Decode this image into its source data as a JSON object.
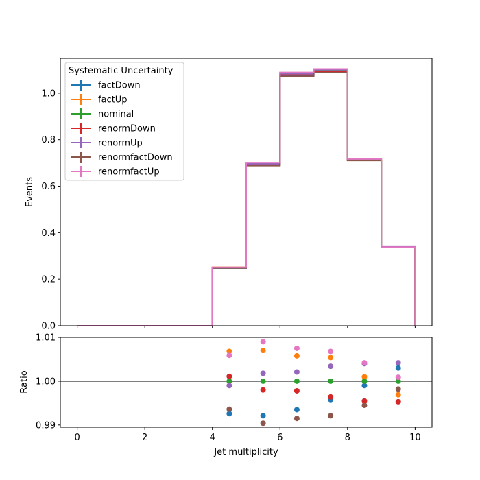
{
  "chart_data": [
    {
      "type": "line",
      "panel": "main",
      "title": "",
      "xlabel": "",
      "ylabel": "Events",
      "xlim": [
        -0.5,
        10.5
      ],
      "ylim": [
        0,
        1.15
      ],
      "xticks": [
        0,
        2,
        4,
        6,
        8,
        10
      ],
      "yticks": [
        0.0,
        0.2,
        0.4,
        0.6,
        0.8,
        1.0
      ],
      "ytick_labels": [
        "0.0",
        "0.2",
        "0.4",
        "0.6",
        "0.8",
        "1.0"
      ],
      "grid": false,
      "legend": {
        "title": "Systematic Uncertainty",
        "placement": "top-left"
      },
      "bin_edges": [
        0,
        1,
        2,
        3,
        4,
        5,
        6,
        7,
        8,
        9,
        10
      ],
      "series": [
        {
          "name": "factDown",
          "color": "#1f77b4",
          "values": [
            0,
            0,
            0,
            0,
            0.248,
            0.692,
            1.075,
            1.092,
            0.713,
            0.339
          ]
        },
        {
          "name": "factUp",
          "color": "#ff7f0e",
          "values": [
            0,
            0,
            0,
            0,
            0.2517,
            0.6999,
            1.0873,
            1.1029,
            0.7147,
            0.337
          ]
        },
        {
          "name": "nominal",
          "color": "#2ca02c",
          "values": [
            0,
            0,
            0,
            0,
            0.25,
            0.695,
            1.081,
            1.097,
            0.714,
            0.338
          ]
        },
        {
          "name": "renormDown",
          "color": "#d62728",
          "values": [
            0,
            0,
            0,
            0,
            0.2503,
            0.6936,
            1.0786,
            1.0931,
            0.7108,
            0.3364
          ]
        },
        {
          "name": "renormUp",
          "color": "#9467bd",
          "values": [
            0,
            0,
            0,
            0,
            0.2498,
            0.6963,
            1.0832,
            1.1007,
            0.7168,
            0.3394
          ]
        },
        {
          "name": "renormfactDown",
          "color": "#8c564b",
          "values": [
            0,
            0,
            0,
            0,
            0.2484,
            0.6883,
            1.0718,
            1.0883,
            0.7101,
            0.3374
          ]
        },
        {
          "name": "renormfactUp",
          "color": "#e377c2",
          "values": [
            0,
            0,
            0,
            0,
            0.2515,
            0.7013,
            1.0891,
            1.1044,
            0.717,
            0.3383
          ]
        }
      ]
    },
    {
      "type": "scatter",
      "panel": "ratio",
      "title": "",
      "xlabel": "Jet multiplicity",
      "ylabel": "Ratio",
      "xlim": [
        -0.5,
        10.5
      ],
      "ylim": [
        0.9895,
        1.01
      ],
      "xticks": [
        0,
        2,
        4,
        6,
        8,
        10
      ],
      "xtick_labels": [
        "0",
        "2",
        "4",
        "6",
        "8",
        "10"
      ],
      "yticks": [
        0.99,
        1.0,
        1.01
      ],
      "ytick_labels": [
        "0.99",
        "1.00",
        "1.01"
      ],
      "reference_line": 1.0,
      "x": [
        4.5,
        5.5,
        6.5,
        7.5,
        8.5,
        9.5
      ],
      "series": [
        {
          "name": "factDown",
          "color": "#1f77b4",
          "values": [
            0.9926,
            0.9921,
            0.9935,
            0.9958,
            0.999,
            1.003
          ]
        },
        {
          "name": "factUp",
          "color": "#ff7f0e",
          "values": [
            1.0068,
            1.007,
            1.0058,
            1.0054,
            1.001,
            0.9969
          ]
        },
        {
          "name": "nominal",
          "color": "#2ca02c",
          "values": [
            1.0,
            1.0,
            1.0,
            1.0,
            1.0,
            1.0
          ]
        },
        {
          "name": "renormDown",
          "color": "#d62728",
          "values": [
            1.0011,
            0.998,
            0.9978,
            0.9964,
            0.9955,
            0.9953
          ]
        },
        {
          "name": "renormUp",
          "color": "#9467bd",
          "values": [
            0.999,
            1.0018,
            1.0021,
            1.0034,
            1.004,
            1.0042
          ]
        },
        {
          "name": "renormfactDown",
          "color": "#8c564b",
          "values": [
            0.9936,
            0.9904,
            0.9915,
            0.9921,
            0.9945,
            0.9982
          ]
        },
        {
          "name": "renormfactUp",
          "color": "#e377c2",
          "values": [
            1.0059,
            1.009,
            1.0075,
            1.0068,
            1.0042,
            1.0009
          ]
        }
      ]
    }
  ]
}
